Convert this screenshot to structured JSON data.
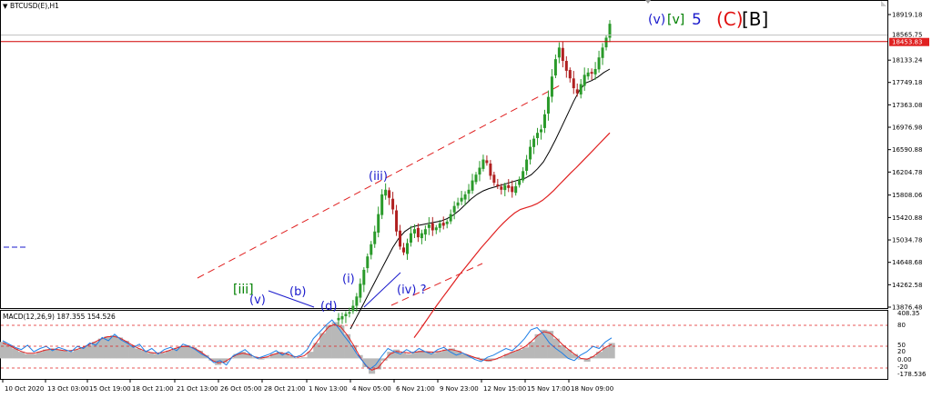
{
  "window": {
    "symbol_title": "BTCUSD(E),H1",
    "dropdown_glyph": "▼"
  },
  "chart_data": {
    "type": "candlestick",
    "price_axis": {
      "ticks": [
        18919.18,
        18133.24,
        17749.18,
        17363.08,
        16976.98,
        16590.88,
        16204.78,
        15808.06,
        15420.88,
        15034.78,
        14648.68,
        14262.58,
        13876.48
      ],
      "ylim": [
        13800,
        19050
      ]
    },
    "markers": {
      "current_price": {
        "label": "18565.75",
        "value": 18565.75
      },
      "horizontal_line": {
        "label": "18453.83",
        "value": 18453.83,
        "color": "#d00000"
      }
    },
    "time_axis_labels": [
      "10 Oct 2020",
      "13 Oct 03:00",
      "15 Oct 19:00",
      "18 Oct 21:00",
      "21 Oct 13:00",
      "26 Oct 05:00",
      "28 Oct 21:00",
      "1 Nov 13:00",
      "4 Nov 05:00",
      "6 Nov 21:00",
      "9 Nov 23:00",
      "12 Nov 15:00",
      "15 Nov 17:00",
      "18 Nov 09:00"
    ],
    "candles_close": [
      13690,
      13720,
      13760,
      13790,
      13900,
      14060,
      14280,
      14520,
      14750,
      14960,
      15180,
      15480,
      15820,
      15900,
      15760,
      15560,
      15180,
      14920,
      14820,
      14980,
      15150,
      15220,
      15080,
      15150,
      15220,
      15300,
      15200,
      15250,
      15320,
      15280,
      15350,
      15480,
      15620,
      15680,
      15760,
      15820,
      15900,
      16060,
      16160,
      16280,
      16420,
      16360,
      16140,
      16020,
      15960,
      15900,
      15980,
      15930,
      15860,
      15960,
      16080,
      16220,
      16420,
      16640,
      16780,
      16880,
      16940,
      17200,
      17500,
      17850,
      18150,
      18350,
      18120,
      17950,
      17820,
      17650,
      17560,
      17720,
      17880,
      17920,
      17900,
      17980,
      18180,
      18350,
      18520,
      18760
    ],
    "moving_average_black": [
      13500,
      13700,
      13900,
      14100,
      14300,
      14500,
      14700,
      14900,
      15060,
      15180,
      15250,
      15280,
      15300,
      15320,
      15340,
      15360,
      15400,
      15460,
      15540,
      15640,
      15740,
      15820,
      15880,
      15920,
      15950,
      15980,
      16010,
      16040,
      16070,
      16100,
      16160,
      16260,
      16380,
      16560,
      16760,
      16980,
      17200,
      17420,
      17620,
      17740,
      17780,
      17840,
      17920,
      17980
    ],
    "moving_average_red": [
      13350,
      13480,
      13620,
      13760,
      13900,
      14030,
      14160,
      14290,
      14420,
      14540,
      14660,
      14780,
      14900,
      15010,
      15120,
      15230,
      15330,
      15420,
      15500,
      15560,
      15590,
      15620,
      15660,
      15720,
      15800,
      15890,
      15990,
      16090,
      16190,
      16280,
      16380,
      16480,
      16580,
      16680,
      16780,
      16880
    ],
    "wave_labels": [
      {
        "text": "[iii]",
        "color": "#008000"
      },
      {
        "text": "(v)",
        "color": "#1a1acc"
      },
      {
        "text": "(b)",
        "color": "#1a1acc"
      },
      {
        "text": "(d)",
        "color": "#1a1acc"
      },
      {
        "text": "(i)",
        "color": "#1a1acc"
      },
      {
        "text": "(iii)",
        "color": "#1a1acc"
      },
      {
        "text": "(iv) ?",
        "color": "#1a1acc"
      }
    ],
    "top_labels": [
      {
        "text": "(v)",
        "color": "#1a1acc"
      },
      {
        "text": "[v]",
        "color": "#008000"
      },
      {
        "text": "5",
        "color": "#1a1acc"
      },
      {
        "text": "(C)",
        "color": "#e01010"
      },
      {
        "text": "[B]",
        "color": "#000000"
      }
    ],
    "macd": {
      "title": "MACD(12,26,9) 187.355 154.526",
      "axis_ticks": [
        "408.35",
        "80",
        "50",
        "20",
        "0.00",
        "-20",
        "-178.536"
      ],
      "ylim": [
        -178.536,
        408.35
      ],
      "histogram": [
        150,
        120,
        90,
        60,
        40,
        40,
        60,
        80,
        90,
        80,
        70,
        60,
        80,
        100,
        120,
        150,
        180,
        200,
        210,
        190,
        160,
        120,
        90,
        70,
        50,
        40,
        50,
        70,
        90,
        110,
        120,
        100,
        70,
        30,
        -20,
        -60,
        -40,
        0,
        40,
        60,
        40,
        10,
        -10,
        10,
        40,
        60,
        50,
        20,
        0,
        10,
        60,
        140,
        230,
        300,
        330,
        300,
        220,
        120,
        30,
        -80,
        -140,
        -100,
        -20,
        60,
        80,
        50,
        40,
        60,
        70,
        60,
        50,
        60,
        80,
        90,
        70,
        40,
        20,
        10,
        -20,
        -30,
        -10,
        10,
        40,
        60,
        80,
        100,
        150,
        220,
        260,
        250,
        180,
        120,
        80,
        40,
        -10,
        -30,
        20,
        60,
        100,
        140
      ],
      "macd_line": [
        160,
        130,
        100,
        80,
        120,
        60,
        90,
        110,
        70,
        100,
        80,
        60,
        110,
        90,
        140,
        120,
        190,
        160,
        220,
        170,
        140,
        100,
        130,
        60,
        90,
        40,
        80,
        100,
        70,
        130,
        110,
        80,
        40,
        10,
        -40,
        -20,
        -60,
        20,
        50,
        80,
        30,
        0,
        20,
        40,
        70,
        30,
        60,
        10,
        30,
        80,
        180,
        240,
        300,
        350,
        280,
        200,
        130,
        40,
        -30,
        -100,
        -60,
        20,
        90,
        60,
        40,
        80,
        50,
        90,
        60,
        40,
        80,
        100,
        60,
        30,
        50,
        20,
        -10,
        -30,
        10,
        30,
        60,
        90,
        70,
        120,
        180,
        260,
        280,
        220,
        140,
        90,
        50,
        0,
        -20,
        30,
        60,
        110,
        90,
        150,
        187
      ]
    }
  }
}
